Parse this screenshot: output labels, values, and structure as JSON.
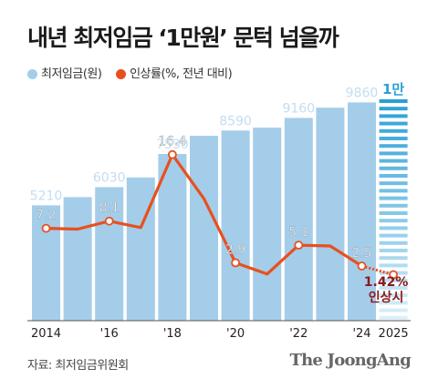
{
  "title": "내년 최저임금 ‘1만원’ 문턱 넘을까",
  "legend": {
    "items": [
      {
        "label": "최저임금(원)",
        "color": "#a4cdea"
      },
      {
        "label": "인상률(%, 전년 대비)",
        "color": "#e8501e"
      }
    ]
  },
  "source": "자료: 최저임금위원회",
  "logo": "The JoongAng",
  "chart_data": {
    "type": "bar+line",
    "years": [
      2014,
      2015,
      2016,
      2017,
      2018,
      2019,
      2020,
      2021,
      2022,
      2023,
      2024,
      2025
    ],
    "x_tick_labels": [
      "2014",
      "",
      "'16",
      "",
      "'18",
      "",
      "'20",
      "",
      "'22",
      "",
      "'24",
      "2025"
    ],
    "series": [
      {
        "name": "최저임금(원)",
        "type": "bar",
        "values": [
          5210,
          5580,
          6030,
          6470,
          7530,
          8350,
          8590,
          8720,
          9160,
          9620,
          9860,
          null
        ],
        "labels": [
          "5210",
          "",
          "6030",
          "",
          "7530",
          "",
          "8590",
          "",
          "9160",
          "",
          "9860",
          ""
        ]
      },
      {
        "name": "인상률(%, 전년 대비)",
        "type": "line",
        "values": [
          7.2,
          7.1,
          8.1,
          7.3,
          16.4,
          10.9,
          2.9,
          1.5,
          5.1,
          5.0,
          2.5,
          1.42
        ],
        "labels": [
          "7.2",
          "",
          "8.1",
          "",
          "16.4",
          "",
          "2.9",
          "",
          "5.1",
          "",
          "2.5",
          ""
        ],
        "projected_from_index": 10
      }
    ],
    "projection": {
      "bar_label": "1만",
      "rate_label": "1.42%",
      "rate_caption": "인상시"
    },
    "bar_ylim": [
      0,
      10000
    ],
    "line_ylim": [
      0,
      24
    ],
    "colors": {
      "bar": "#a4cdea",
      "bar_label": "#ffffff",
      "line": "#e8501e",
      "projection": "#2a9fd6",
      "projection_text": "#8b1a1a"
    }
  }
}
